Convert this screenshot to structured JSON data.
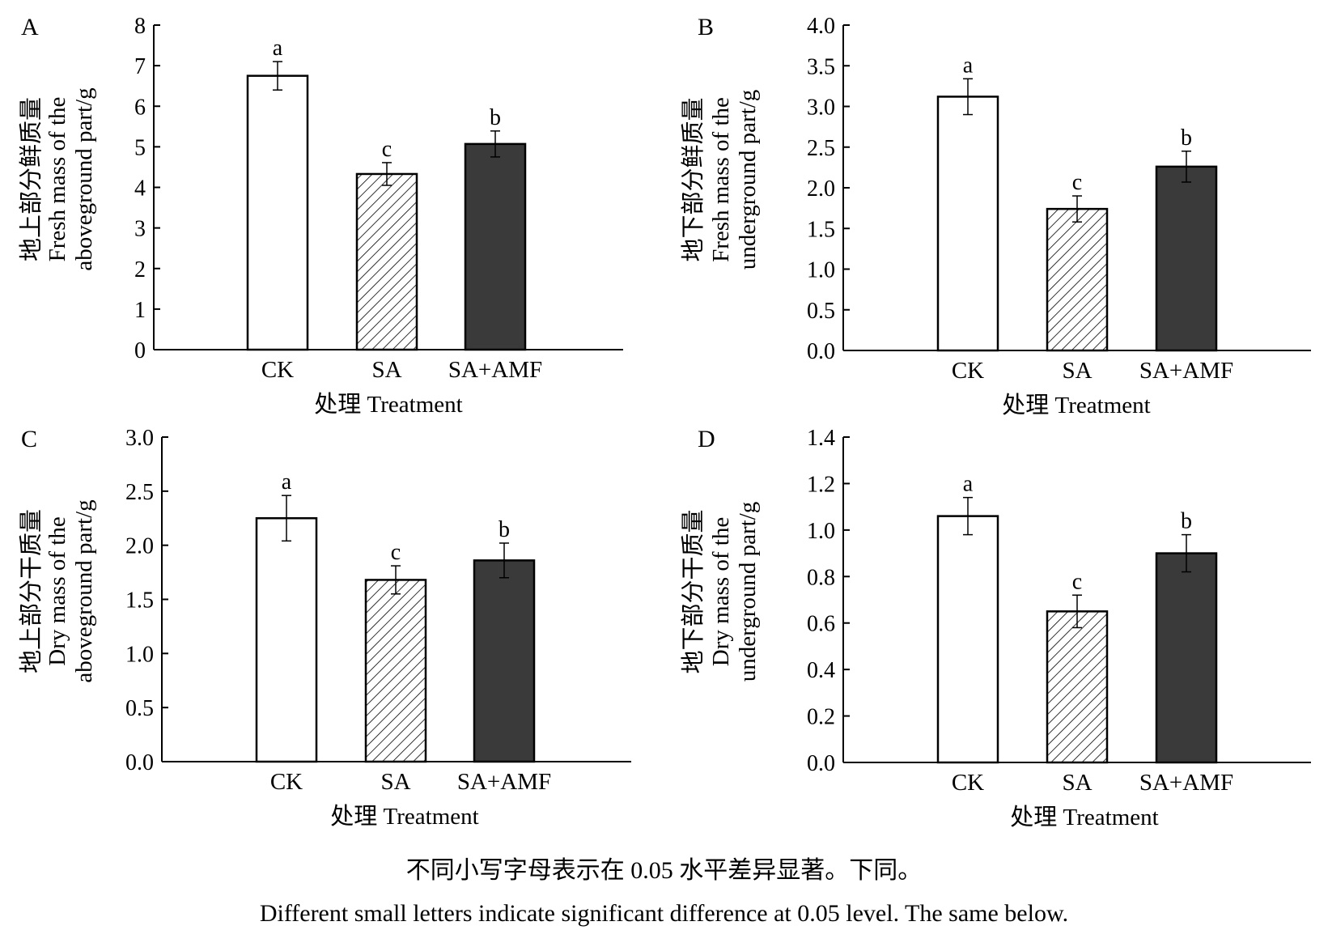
{
  "colors": {
    "ck_fill": "#ffffff",
    "sa_fill": "hatch",
    "sa_amf_fill": "#3a3a3a",
    "axis": "#000000"
  },
  "chart_data": [
    {
      "panel": "A",
      "type": "bar",
      "categories": [
        "CK",
        "SA",
        "SA+AMF"
      ],
      "values": [
        6.75,
        4.33,
        5.07
      ],
      "errors": [
        0.35,
        0.28,
        0.32
      ],
      "letters": [
        "a",
        "c",
        "b"
      ],
      "ylabel_cn": "地上部分鲜质量",
      "ylabel_en_1": "Fresh mass of the",
      "ylabel_en_2": "aboveground part/g",
      "xlabel": "处理 Treatment",
      "ylim": [
        0,
        8
      ],
      "yticks": [
        "0",
        "1",
        "2",
        "3",
        "4",
        "5",
        "6",
        "7",
        "8"
      ]
    },
    {
      "panel": "B",
      "type": "bar",
      "categories": [
        "CK",
        "SA",
        "SA+AMF"
      ],
      "values": [
        3.12,
        1.74,
        2.26
      ],
      "errors": [
        0.22,
        0.16,
        0.19
      ],
      "letters": [
        "a",
        "c",
        "b"
      ],
      "ylabel_cn": "地下部分鲜质量",
      "ylabel_en_1": "Fresh mass of the",
      "ylabel_en_2": "underground part/g",
      "xlabel": "处理 Treatment",
      "ylim": [
        0,
        4
      ],
      "yticks": [
        "0.0",
        "0.5",
        "1.0",
        "1.5",
        "2.0",
        "2.5",
        "3.0",
        "3.5",
        "4.0"
      ]
    },
    {
      "panel": "C",
      "type": "bar",
      "categories": [
        "CK",
        "SA",
        "SA+AMF"
      ],
      "values": [
        2.25,
        1.68,
        1.86
      ],
      "errors": [
        0.21,
        0.13,
        0.16
      ],
      "letters": [
        "a",
        "c",
        "b"
      ],
      "ylabel_cn": "地上部分干质量",
      "ylabel_en_1": "Dry mass of the",
      "ylabel_en_2": "aboveground part/g",
      "xlabel": "处理 Treatment",
      "ylim": [
        0,
        3
      ],
      "yticks": [
        "0.0",
        "0.5",
        "1.0",
        "1.5",
        "2.0",
        "2.5",
        "3.0"
      ]
    },
    {
      "panel": "D",
      "type": "bar",
      "categories": [
        "CK",
        "SA",
        "SA+AMF"
      ],
      "values": [
        1.06,
        0.65,
        0.9
      ],
      "errors": [
        0.08,
        0.07,
        0.08
      ],
      "letters": [
        "a",
        "c",
        "b"
      ],
      "ylabel_cn": "地下部分干质量",
      "ylabel_en_1": "Dry mass of the",
      "ylabel_en_2": "underground part/g",
      "xlabel": "处理 Treatment",
      "ylim": [
        0,
        1.4
      ],
      "yticks": [
        "0.0",
        "0.2",
        "0.4",
        "0.6",
        "0.8",
        "1.0",
        "1.2",
        "1.4"
      ]
    }
  ],
  "caption": {
    "cn": "不同小写字母表示在 0.05 水平差异显著。下同。",
    "en": "Different small letters indicate significant difference at 0.05 level. The same below."
  }
}
